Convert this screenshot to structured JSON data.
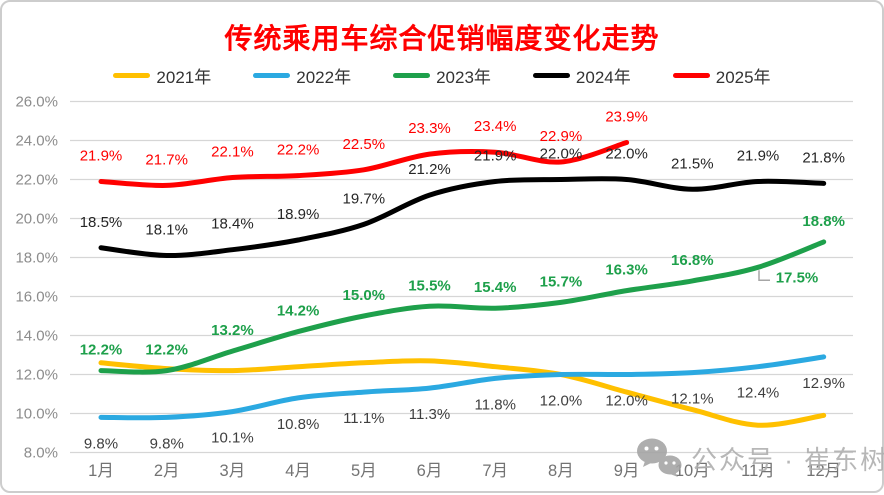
{
  "chart_data": {
    "type": "line",
    "title": "传统乘用车综合促销幅度变化走势",
    "title_color": "#FF0000",
    "legend_position": "top",
    "grid": "horizontal",
    "categories": [
      "1月",
      "2月",
      "3月",
      "4月",
      "5月",
      "6月",
      "7月",
      "8月",
      "9月",
      "10月",
      "11月",
      "12月"
    ],
    "y_ticks": [
      "26.0%",
      "24.0%",
      "22.0%",
      "20.0%",
      "18.0%",
      "16.0%",
      "14.0%",
      "12.0%",
      "10.0%",
      "8.0%"
    ],
    "ylim": [
      8,
      26
    ],
    "y_step": 2,
    "series": [
      {
        "name": "2021年",
        "color": "#FFC000",
        "show_labels": false,
        "values": [
          12.6,
          12.3,
          12.2,
          12.4,
          12.6,
          12.7,
          12.4,
          12.0,
          11.1,
          10.2,
          9.4,
          9.9
        ]
      },
      {
        "name": "2022年",
        "color": "#2BA9E1",
        "show_labels": true,
        "label_color": "#3F3F3F",
        "label_position": "below",
        "label_dy": 31,
        "values": [
          9.8,
          9.8,
          10.1,
          10.8,
          11.1,
          11.3,
          11.8,
          12.0,
          12.0,
          12.1,
          12.4,
          12.9
        ]
      },
      {
        "name": "2023年",
        "color": "#1EA04B",
        "show_labels": true,
        "label_color": "#1EA04B",
        "label_bold": true,
        "label_position": "above",
        "label_dy": -16,
        "values": [
          12.2,
          12.2,
          13.2,
          14.2,
          15.0,
          15.5,
          15.4,
          15.7,
          16.3,
          16.8,
          17.5,
          18.8
        ],
        "label_overrides": {
          "10": {
            "dx": 39,
            "dy": 15,
            "leader": true
          }
        }
      },
      {
        "name": "2024年",
        "color": "#000000",
        "show_labels": true,
        "label_color": "#262626",
        "label_position": "above",
        "label_dy": -21,
        "values": [
          18.5,
          18.1,
          18.4,
          18.9,
          19.7,
          21.2,
          21.9,
          22.0,
          22.0,
          21.5,
          21.9,
          21.8
        ]
      },
      {
        "name": "2025年",
        "color": "#FF0000",
        "show_labels": true,
        "label_color": "#FF0000",
        "label_position": "above",
        "label_dy": -21,
        "values": [
          21.9,
          21.7,
          22.1,
          22.2,
          22.5,
          23.3,
          23.4,
          22.9,
          23.9
        ]
      }
    ]
  },
  "watermark": {
    "text": "公众号 · 崔东树",
    "icon": "wechat-icon"
  }
}
